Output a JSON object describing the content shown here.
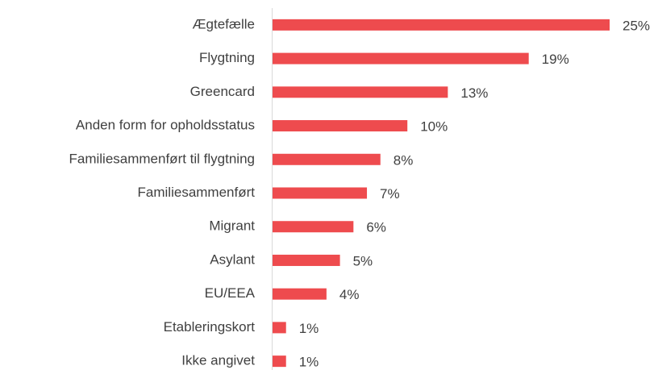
{
  "chart_data": {
    "type": "bar",
    "orientation": "horizontal",
    "categories": [
      "Ægtefælle",
      "Flygtning",
      "Greencard",
      "Anden form for opholdsstatus",
      "Familiesammenført til flygtning",
      "Familiesammenført",
      "Migrant",
      "Asylant",
      "EU/EEA",
      "Etableringskort",
      "Ikke angivet"
    ],
    "values": [
      25,
      19,
      13,
      10,
      8,
      7,
      6,
      5,
      4,
      1,
      1
    ],
    "value_labels": [
      "25%",
      "19%",
      "13%",
      "10%",
      "8%",
      "7%",
      "6%",
      "5%",
      "4%",
      "1%",
      "1%"
    ],
    "color": "#ee4b4e"
  }
}
